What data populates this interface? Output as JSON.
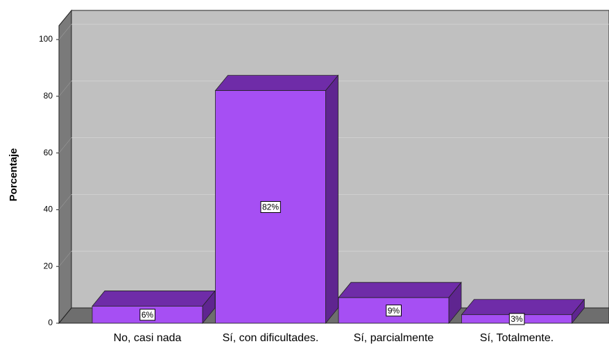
{
  "chart_data": {
    "type": "bar3d",
    "y_label": "Porcentaje",
    "categories": [
      "No, casi nada",
      "Sí, con dificultades.",
      "Sí, parcialmente",
      "Sí, Totalmente."
    ],
    "values": [
      6,
      82,
      9,
      3
    ],
    "value_labels": [
      "6%",
      "82%",
      "9%",
      "3%"
    ],
    "color": "#a64ff3",
    "ylim": [
      0,
      100
    ],
    "yticks": [
      0,
      20,
      40,
      60,
      80,
      100
    ],
    "grid": true
  }
}
